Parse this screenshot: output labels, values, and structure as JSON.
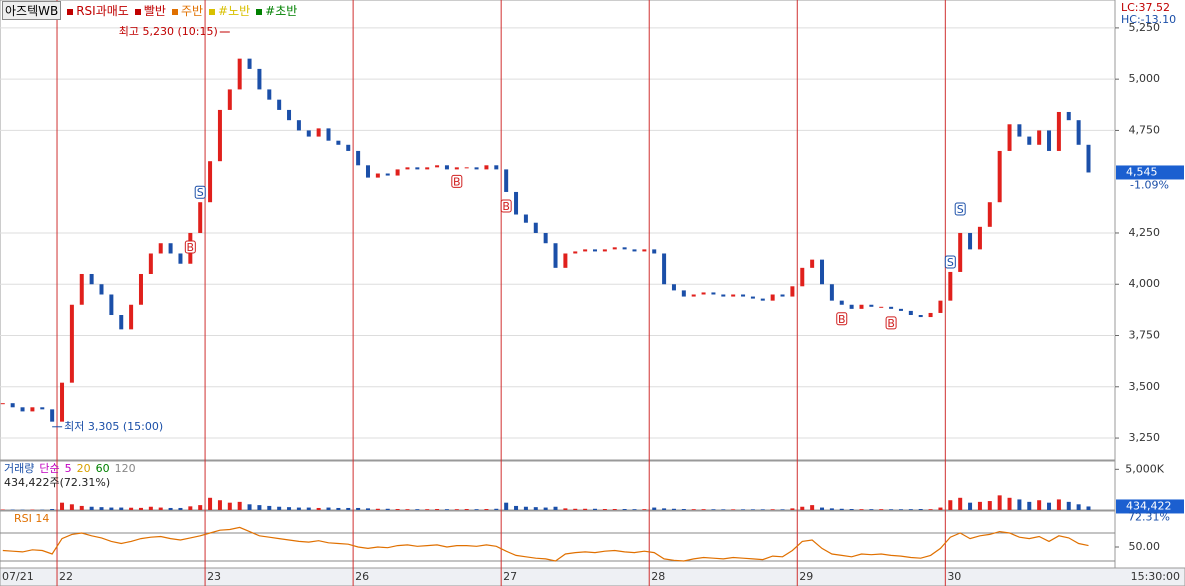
{
  "chart_data": {
    "type": "candlestick",
    "title": "아즈텍WB",
    "indicators": [
      {
        "name": "RSI과매도",
        "color": "#c00000"
      },
      {
        "name": "빨반",
        "color": "#c00000"
      },
      {
        "name": "주반",
        "color": "#e07000"
      },
      {
        "name": "#노반",
        "color": "#d8c000"
      },
      {
        "name": "#초반",
        "color": "#008000"
      }
    ],
    "categories": [
      "07/21",
      null,
      null,
      null,
      null,
      null,
      "22",
      null,
      null,
      null,
      null,
      null,
      null,
      null,
      null,
      null,
      null,
      null,
      null,
      null,
      null,
      "23",
      null,
      null,
      null,
      null,
      null,
      null,
      null,
      null,
      null,
      null,
      null,
      null,
      null,
      null,
      "26",
      null,
      null,
      null,
      null,
      null,
      null,
      null,
      null,
      null,
      null,
      null,
      null,
      null,
      null,
      "27",
      null,
      null,
      null,
      null,
      null,
      null,
      null,
      null,
      null,
      null,
      null,
      null,
      null,
      null,
      "28",
      null,
      null,
      null,
      null,
      null,
      null,
      null,
      null,
      null,
      null,
      null,
      null,
      null,
      null,
      "29",
      null,
      null,
      null,
      null,
      null,
      null,
      null,
      null,
      null,
      null,
      null,
      null,
      null,
      null,
      "30",
      null,
      null,
      null,
      null,
      null,
      null,
      null,
      null,
      null,
      null,
      null,
      null,
      null,
      null
    ],
    "time_label": "15:30:00",
    "price": {
      "values": [
        3420,
        3400,
        3380,
        3400,
        3390,
        3330,
        3520,
        3900,
        4050,
        4000,
        3950,
        3850,
        3780,
        3900,
        4050,
        4150,
        4200,
        4150,
        4100,
        4250,
        4400,
        4600,
        4850,
        4950,
        5100,
        5050,
        4950,
        4900,
        4850,
        4800,
        4750,
        4720,
        4760,
        4700,
        4680,
        4650,
        4580,
        4520,
        4540,
        4530,
        4560,
        4570,
        4560,
        4570,
        4580,
        4560,
        4570,
        4570,
        4560,
        4580,
        4560,
        4450,
        4340,
        4300,
        4250,
        4200,
        4080,
        4150,
        4160,
        4170,
        4160,
        4170,
        4180,
        4170,
        4160,
        4170,
        4150,
        4000,
        3970,
        3940,
        3950,
        3960,
        3950,
        3940,
        3950,
        3940,
        3930,
        3920,
        3950,
        3940,
        3990,
        4080,
        4120,
        4000,
        3920,
        3900,
        3880,
        3900,
        3890,
        3890,
        3880,
        3870,
        3850,
        3840,
        3860,
        3920,
        4060,
        4250,
        4170,
        4280,
        4400,
        4650,
        4780,
        4720,
        4680,
        4750,
        4650,
        4840,
        4800,
        4680,
        4545
      ],
      "up_color": "#e0201c",
      "down_color": "#1b4fa8",
      "ylim": [
        3143,
        5386
      ],
      "yticks": [
        {
          "value": 3250,
          "label": "3,250"
        },
        {
          "value": 3500,
          "label": "3,500"
        },
        {
          "value": 3750,
          "label": "3,750"
        },
        {
          "value": 4000,
          "label": "4,000"
        },
        {
          "value": 4250,
          "label": "4,250"
        },
        {
          "value": 4750,
          "label": "4,750"
        },
        {
          "value": 5000,
          "label": "5,000"
        },
        {
          "value": 5250,
          "label": "5,250"
        }
      ],
      "last": {
        "value": 4545,
        "label": "4,545"
      },
      "change": "-1.09%",
      "lc": "LC:37.52",
      "hc": "HC:-13.10",
      "annotations": [
        {
          "label": "최고 5,230 (10:15)",
          "value": 5230,
          "point": 23
        },
        {
          "label": "최저 3,305 (15:00)",
          "value": 3305,
          "point": 5
        }
      ],
      "signals": [
        {
          "label": "S",
          "point": 20
        },
        {
          "label": "B",
          "point": 19
        },
        {
          "label": "B",
          "point": 46
        },
        {
          "label": "B",
          "point": 51
        },
        {
          "label": "B",
          "point": 85
        },
        {
          "label": "B",
          "point": 90
        },
        {
          "label": "S",
          "point": 96
        },
        {
          "label": "S",
          "point": 97
        }
      ]
    },
    "volume": {
      "title": "거래량",
      "ma_label": "단순",
      "ma_periods": [
        {
          "value": 5,
          "color": "#c000c0"
        },
        {
          "value": 20,
          "color": "#d8a000"
        },
        {
          "value": 60,
          "color": "#008000"
        },
        {
          "value": 120,
          "color": "#888888"
        }
      ],
      "values": [
        60,
        50,
        40,
        50,
        40,
        120,
        900,
        700,
        500,
        400,
        350,
        300,
        300,
        280,
        260,
        400,
        300,
        250,
        250,
        450,
        600,
        1500,
        1200,
        900,
        1000,
        700,
        600,
        500,
        400,
        350,
        300,
        300,
        250,
        300,
        250,
        250,
        250,
        200,
        150,
        150,
        120,
        100,
        100,
        100,
        120,
        100,
        100,
        120,
        100,
        120,
        150,
        900,
        500,
        400,
        350,
        300,
        400,
        200,
        150,
        150,
        150,
        120,
        120,
        120,
        100,
        100,
        300,
        200,
        150,
        120,
        100,
        100,
        90,
        80,
        80,
        80,
        80,
        80,
        90,
        80,
        200,
        400,
        600,
        300,
        200,
        150,
        120,
        100,
        100,
        100,
        90,
        90,
        100,
        120,
        100,
        300,
        1200,
        1500,
        900,
        1000,
        1100,
        1800,
        1500,
        1300,
        1000,
        1200,
        900,
        1300,
        1000,
        700,
        434.422
      ],
      "ylim": [
        0,
        5900
      ],
      "yticks": [
        {
          "value": 5000,
          "label": "5,000K"
        }
      ],
      "summary": "434,422주(72.31%)",
      "last": {
        "value": 434.422,
        "label": "434,422"
      },
      "ratio": "72.31%"
    },
    "rsi": {
      "title": "RSI 14",
      "color": "#e07000",
      "values": [
        45,
        44,
        43,
        46,
        45,
        40,
        62,
        68,
        70,
        66,
        63,
        58,
        55,
        58,
        62,
        64,
        65,
        62,
        60,
        63,
        66,
        70,
        74,
        75,
        78,
        72,
        66,
        64,
        62,
        60,
        58,
        57,
        59,
        56,
        55,
        54,
        50,
        48,
        50,
        49,
        52,
        53,
        51,
        52,
        53,
        50,
        52,
        52,
        51,
        53,
        51,
        44,
        38,
        36,
        34,
        33,
        30,
        40,
        42,
        43,
        42,
        44,
        45,
        43,
        42,
        44,
        42,
        33,
        31,
        30,
        33,
        35,
        34,
        33,
        35,
        34,
        33,
        32,
        37,
        36,
        45,
        58,
        60,
        48,
        40,
        38,
        36,
        40,
        39,
        40,
        38,
        37,
        35,
        34,
        38,
        48,
        64,
        70,
        62,
        66,
        68,
        72,
        70,
        64,
        62,
        65,
        58,
        66,
        63,
        55,
        52
      ],
      "ylim": [
        20,
        100
      ],
      "yticks": [
        {
          "value": 50,
          "label": "50.00"
        }
      ],
      "levels": [
        30,
        70
      ]
    }
  }
}
